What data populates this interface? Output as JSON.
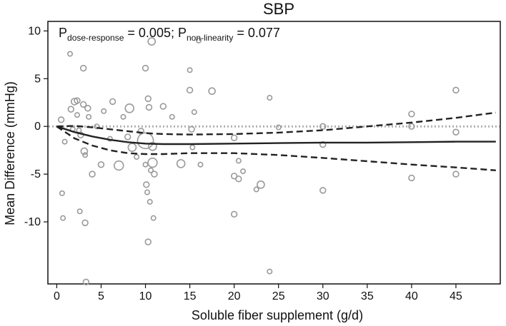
{
  "chart_data": {
    "type": "scatter",
    "title": "SBP",
    "xlabel": "Soluble fiber supplement (g/d)",
    "ylabel": "Mean Difference (mmHg)",
    "xlim": [
      -1,
      50
    ],
    "ylim": [
      -16.5,
      11
    ],
    "xticks": [
      "0",
      "5",
      "10",
      "15",
      "20",
      "25",
      "30",
      "35",
      "40",
      "45"
    ],
    "yticks": [
      "10",
      "5",
      "0",
      "-5",
      "-10"
    ],
    "annotation": {
      "p1_symbol": "P",
      "p1_sub": "dose-response",
      "p1_value": " = 0.005; ",
      "p2_symbol": "P",
      "p2_sub": "non-linearity",
      "p2_value": " = 0.077"
    },
    "reference_line_y": 0,
    "colors": {
      "points": "#9a9a9a",
      "curve": "#222222",
      "reference": "#b0b0b0"
    },
    "studies": [
      {
        "x": 0.5,
        "y": 0.7,
        "w": 1.5
      },
      {
        "x": 0.6,
        "y": -7.0,
        "w": 1
      },
      {
        "x": 0.7,
        "y": -9.6,
        "w": 1
      },
      {
        "x": 0.9,
        "y": -1.6,
        "w": 1
      },
      {
        "x": 1.5,
        "y": 7.6,
        "w": 1
      },
      {
        "x": 1.6,
        "y": 1.8,
        "w": 1.5
      },
      {
        "x": 1.8,
        "y": -0.3,
        "w": 1
      },
      {
        "x": 2.0,
        "y": 2.6,
        "w": 2
      },
      {
        "x": 2.3,
        "y": 2.7,
        "w": 1.5
      },
      {
        "x": 2.3,
        "y": 1.2,
        "w": 1
      },
      {
        "x": 2.5,
        "y": -0.4,
        "w": 1
      },
      {
        "x": 2.6,
        "y": -8.9,
        "w": 1
      },
      {
        "x": 2.7,
        "y": -0.9,
        "w": 1.5
      },
      {
        "x": 3.0,
        "y": 6.1,
        "w": 1.5
      },
      {
        "x": 3.0,
        "y": 2.3,
        "w": 1.5
      },
      {
        "x": 3.1,
        "y": -2.6,
        "w": 2
      },
      {
        "x": 3.2,
        "y": -3.0,
        "w": 1
      },
      {
        "x": 3.2,
        "y": -10.1,
        "w": 1.5
      },
      {
        "x": 3.3,
        "y": -16.3,
        "w": 1.5
      },
      {
        "x": 3.5,
        "y": 1.9,
        "w": 1.5
      },
      {
        "x": 3.6,
        "y": 1.0,
        "w": 1
      },
      {
        "x": 4.0,
        "y": -5.0,
        "w": 1.5
      },
      {
        "x": 4.5,
        "y": 0.0,
        "w": 1
      },
      {
        "x": 5.0,
        "y": -4.0,
        "w": 1.5
      },
      {
        "x": 5.3,
        "y": 1.6,
        "w": 1
      },
      {
        "x": 6.0,
        "y": -1.3,
        "w": 1
      },
      {
        "x": 6.3,
        "y": 2.6,
        "w": 1.5
      },
      {
        "x": 7.0,
        "y": -4.1,
        "w": 4
      },
      {
        "x": 7.5,
        "y": 1.0,
        "w": 1
      },
      {
        "x": 8.0,
        "y": -1.1,
        "w": 1.5
      },
      {
        "x": 8.2,
        "y": 1.9,
        "w": 3.5
      },
      {
        "x": 8.5,
        "y": -2.2,
        "w": 3
      },
      {
        "x": 9.0,
        "y": -3.2,
        "w": 1
      },
      {
        "x": 9.5,
        "y": -0.5,
        "w": 1.5
      },
      {
        "x": 10.0,
        "y": 6.1,
        "w": 1.5
      },
      {
        "x": 10.0,
        "y": -1.5,
        "w": 12
      },
      {
        "x": 10.0,
        "y": -4.0,
        "w": 1
      },
      {
        "x": 10.1,
        "y": -6.1,
        "w": 1.5
      },
      {
        "x": 10.2,
        "y": -6.9,
        "w": 1
      },
      {
        "x": 10.3,
        "y": -12.1,
        "w": 1.5
      },
      {
        "x": 10.3,
        "y": 2.9,
        "w": 1.5
      },
      {
        "x": 10.4,
        "y": 2.0,
        "w": 1.5
      },
      {
        "x": 10.5,
        "y": -7.9,
        "w": 1
      },
      {
        "x": 10.6,
        "y": -4.6,
        "w": 1
      },
      {
        "x": 10.7,
        "y": 8.9,
        "w": 2.5
      },
      {
        "x": 10.8,
        "y": -2.1,
        "w": 3
      },
      {
        "x": 10.8,
        "y": -3.8,
        "w": 4
      },
      {
        "x": 10.9,
        "y": -9.6,
        "w": 1
      },
      {
        "x": 11.0,
        "y": -5.0,
        "w": 1.5
      },
      {
        "x": 12.0,
        "y": 2.1,
        "w": 1.5
      },
      {
        "x": 13.0,
        "y": 1.0,
        "w": 1
      },
      {
        "x": 14.0,
        "y": -3.9,
        "w": 3
      },
      {
        "x": 15.0,
        "y": 5.9,
        "w": 1
      },
      {
        "x": 15.0,
        "y": 3.8,
        "w": 1.5
      },
      {
        "x": 15.2,
        "y": -0.3,
        "w": 1.5
      },
      {
        "x": 15.3,
        "y": -2.2,
        "w": 1
      },
      {
        "x": 15.5,
        "y": 1.5,
        "w": 1
      },
      {
        "x": 16.0,
        "y": 9.0,
        "w": 1
      },
      {
        "x": 16.2,
        "y": -4.0,
        "w": 1
      },
      {
        "x": 17.5,
        "y": 3.7,
        "w": 2
      },
      {
        "x": 20.0,
        "y": -1.2,
        "w": 1.5
      },
      {
        "x": 20.0,
        "y": -5.2,
        "w": 1.5
      },
      {
        "x": 20.0,
        "y": -9.2,
        "w": 1.5
      },
      {
        "x": 20.5,
        "y": -3.6,
        "w": 1
      },
      {
        "x": 20.5,
        "y": -5.5,
        "w": 1.5
      },
      {
        "x": 21.0,
        "y": -4.7,
        "w": 1
      },
      {
        "x": 22.5,
        "y": -6.6,
        "w": 1
      },
      {
        "x": 23.0,
        "y": -6.1,
        "w": 2.5
      },
      {
        "x": 24.0,
        "y": 3.0,
        "w": 1
      },
      {
        "x": 24.0,
        "y": -15.2,
        "w": 1
      },
      {
        "x": 25.0,
        "y": -0.1,
        "w": 1
      },
      {
        "x": 30.0,
        "y": -1.9,
        "w": 1.5
      },
      {
        "x": 30.0,
        "y": -6.7,
        "w": 1.5
      },
      {
        "x": 30.0,
        "y": 0.0,
        "w": 1.5
      },
      {
        "x": 40.0,
        "y": 1.3,
        "w": 1.5
      },
      {
        "x": 40.0,
        "y": 0.0,
        "w": 1.5
      },
      {
        "x": 40.0,
        "y": -5.4,
        "w": 1.5
      },
      {
        "x": 45.0,
        "y": 3.8,
        "w": 1.5
      },
      {
        "x": 45.0,
        "y": -0.6,
        "w": 1.5
      },
      {
        "x": 45.0,
        "y": -5.0,
        "w": 1.5
      }
    ],
    "series": [
      {
        "name": "estimate",
        "style": "solid",
        "x": [
          0,
          2,
          4,
          6,
          8,
          10,
          12,
          15,
          20,
          25,
          30,
          35,
          40,
          45,
          49.5
        ],
        "y": [
          0,
          -0.6,
          -1.05,
          -1.4,
          -1.65,
          -1.8,
          -1.85,
          -1.85,
          -1.8,
          -1.75,
          -1.7,
          -1.7,
          -1.65,
          -1.6,
          -1.6
        ]
      },
      {
        "name": "upper 95% CI",
        "style": "dashed",
        "x": [
          0,
          2,
          4,
          6,
          8,
          10,
          12,
          15,
          20,
          25,
          30,
          35,
          40,
          45,
          49.5
        ],
        "y": [
          0,
          0.05,
          -0.1,
          -0.3,
          -0.5,
          -0.7,
          -0.8,
          -0.85,
          -0.8,
          -0.65,
          -0.4,
          0.0,
          0.4,
          0.9,
          1.45
        ]
      },
      {
        "name": "lower 95% CI",
        "style": "dashed",
        "x": [
          0,
          2,
          4,
          6,
          8,
          10,
          12,
          15,
          20,
          25,
          30,
          35,
          40,
          45,
          49.5
        ],
        "y": [
          0,
          -1.25,
          -2.0,
          -2.5,
          -2.8,
          -2.9,
          -2.9,
          -2.8,
          -2.8,
          -3.0,
          -3.3,
          -3.65,
          -4.0,
          -4.3,
          -4.6
        ]
      }
    ]
  }
}
